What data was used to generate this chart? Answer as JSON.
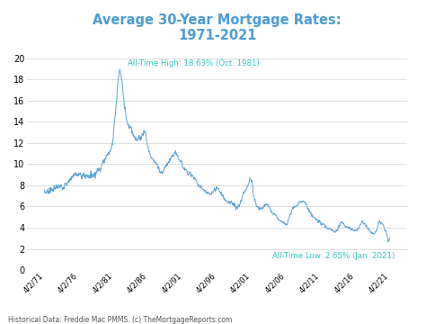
{
  "title_line1": "Average 30-Year Mortgage Rates:",
  "title_line2": "1971-2021",
  "title_color": "#4b9cd3",
  "line_color": "#5ba3d9",
  "background_color": "#ffffff",
  "annotation_high_text": "All-Time High: 18.63% (Oct. 1981)",
  "annotation_low_text": "All-Time Low: 2.65% (Jan. 2021)",
  "annotation_color": "#2ec4c4",
  "footer_text": "Historical Data: Freddie Mac PMMS. (c) TheMortgageReports.com",
  "ylim": [
    0,
    21
  ],
  "yticks": [
    0,
    2,
    4,
    6,
    8,
    10,
    12,
    14,
    16,
    18,
    20
  ],
  "x_tick_labels": [
    "4/2/71",
    "4/2/76",
    "4/2/81",
    "4/2/86",
    "4/2/91",
    "4/2/96",
    "4/2/01",
    "4/2/06",
    "4/2/11",
    "4/2/16",
    "4/2/21"
  ]
}
